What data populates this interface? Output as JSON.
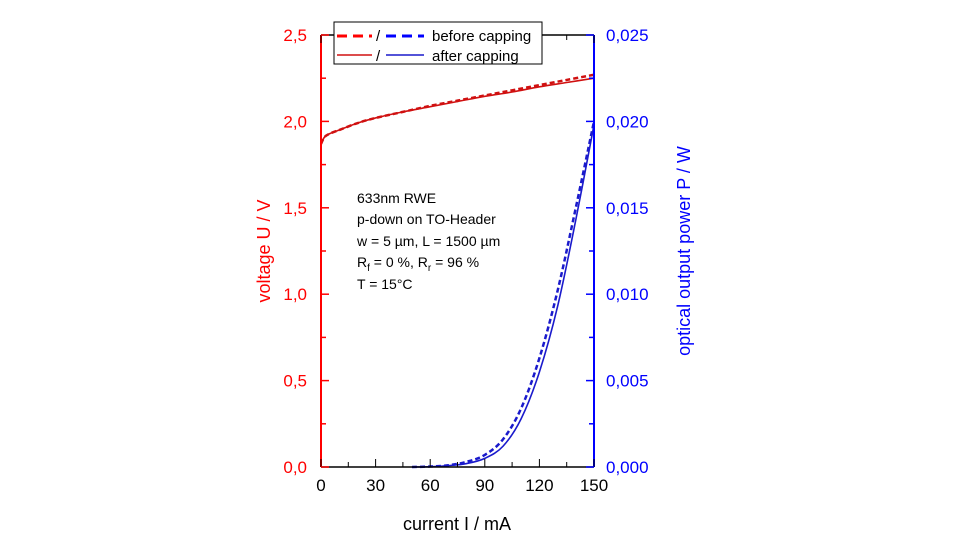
{
  "chart_data": {
    "type": "line",
    "xlabel": "current I / mA",
    "ylabel_left": "voltage U / V",
    "ylabel_right": "optical output power P / W",
    "xlim": [
      0,
      150
    ],
    "ylim_left": [
      0,
      2.5
    ],
    "ylim_right": [
      0,
      0.025
    ],
    "x_ticks": [
      "0",
      "30",
      "60",
      "90",
      "120",
      "150"
    ],
    "y_left_ticks": [
      "0,0",
      "0,5",
      "1,0",
      "1,5",
      "2,0",
      "2,5"
    ],
    "y_right_ticks": [
      "0,000",
      "0,005",
      "0,010",
      "0,015",
      "0,020",
      "0,025"
    ],
    "grid": false,
    "legend": {
      "placement": "top",
      "entries": [
        {
          "label": "before capping",
          "separator": "/",
          "style": "dashed"
        },
        {
          "label": "after capping",
          "separator": "/",
          "style": "solid"
        }
      ]
    },
    "annotation": {
      "line1": "633nm RWE",
      "line2": "p-down on TO-Header",
      "line3": "w = 5 µm, L = 1500 µm",
      "line4_a": "R",
      "line4_b": "f",
      "line4_c": " = 0 %, R",
      "line4_d": "r",
      "line4_e": " = 96 %",
      "line5": "T = 15°C"
    },
    "colors": {
      "voltage": "#ff0000",
      "voltage_curve": "#d01010",
      "power": "#0000ff",
      "power_curve": "#1a1acc"
    },
    "series": [
      {
        "axis": "left",
        "style": "dashed",
        "x": [
          0,
          2,
          5,
          10,
          20,
          30,
          45,
          60,
          75,
          90,
          105,
          120,
          135,
          150
        ],
        "y": [
          1.87,
          1.91,
          1.93,
          1.95,
          1.99,
          2.02,
          2.055,
          2.09,
          2.12,
          2.15,
          2.18,
          2.21,
          2.24,
          2.27
        ]
      },
      {
        "axis": "left",
        "style": "solid",
        "x": [
          0,
          2,
          5,
          10,
          20,
          30,
          45,
          60,
          75,
          90,
          105,
          120,
          135,
          150
        ],
        "y": [
          1.87,
          1.91,
          1.93,
          1.95,
          1.99,
          2.02,
          2.055,
          2.085,
          2.115,
          2.145,
          2.17,
          2.2,
          2.225,
          2.25
        ]
      },
      {
        "axis": "right",
        "style": "dashed",
        "x": [
          50,
          60,
          70,
          80,
          90,
          100,
          110,
          120,
          130,
          140,
          150
        ],
        "y": [
          0,
          3e-05,
          0.0001,
          0.0003,
          0.0007,
          0.0016,
          0.0034,
          0.0063,
          0.0102,
          0.015,
          0.02
        ]
      },
      {
        "axis": "right",
        "style": "solid",
        "x": [
          50,
          60,
          70,
          80,
          90,
          100,
          110,
          120,
          130,
          140,
          150
        ],
        "y": [
          0,
          2e-05,
          8e-05,
          0.0002,
          0.0005,
          0.0012,
          0.0028,
          0.0055,
          0.0093,
          0.0143,
          0.0198
        ]
      }
    ]
  }
}
